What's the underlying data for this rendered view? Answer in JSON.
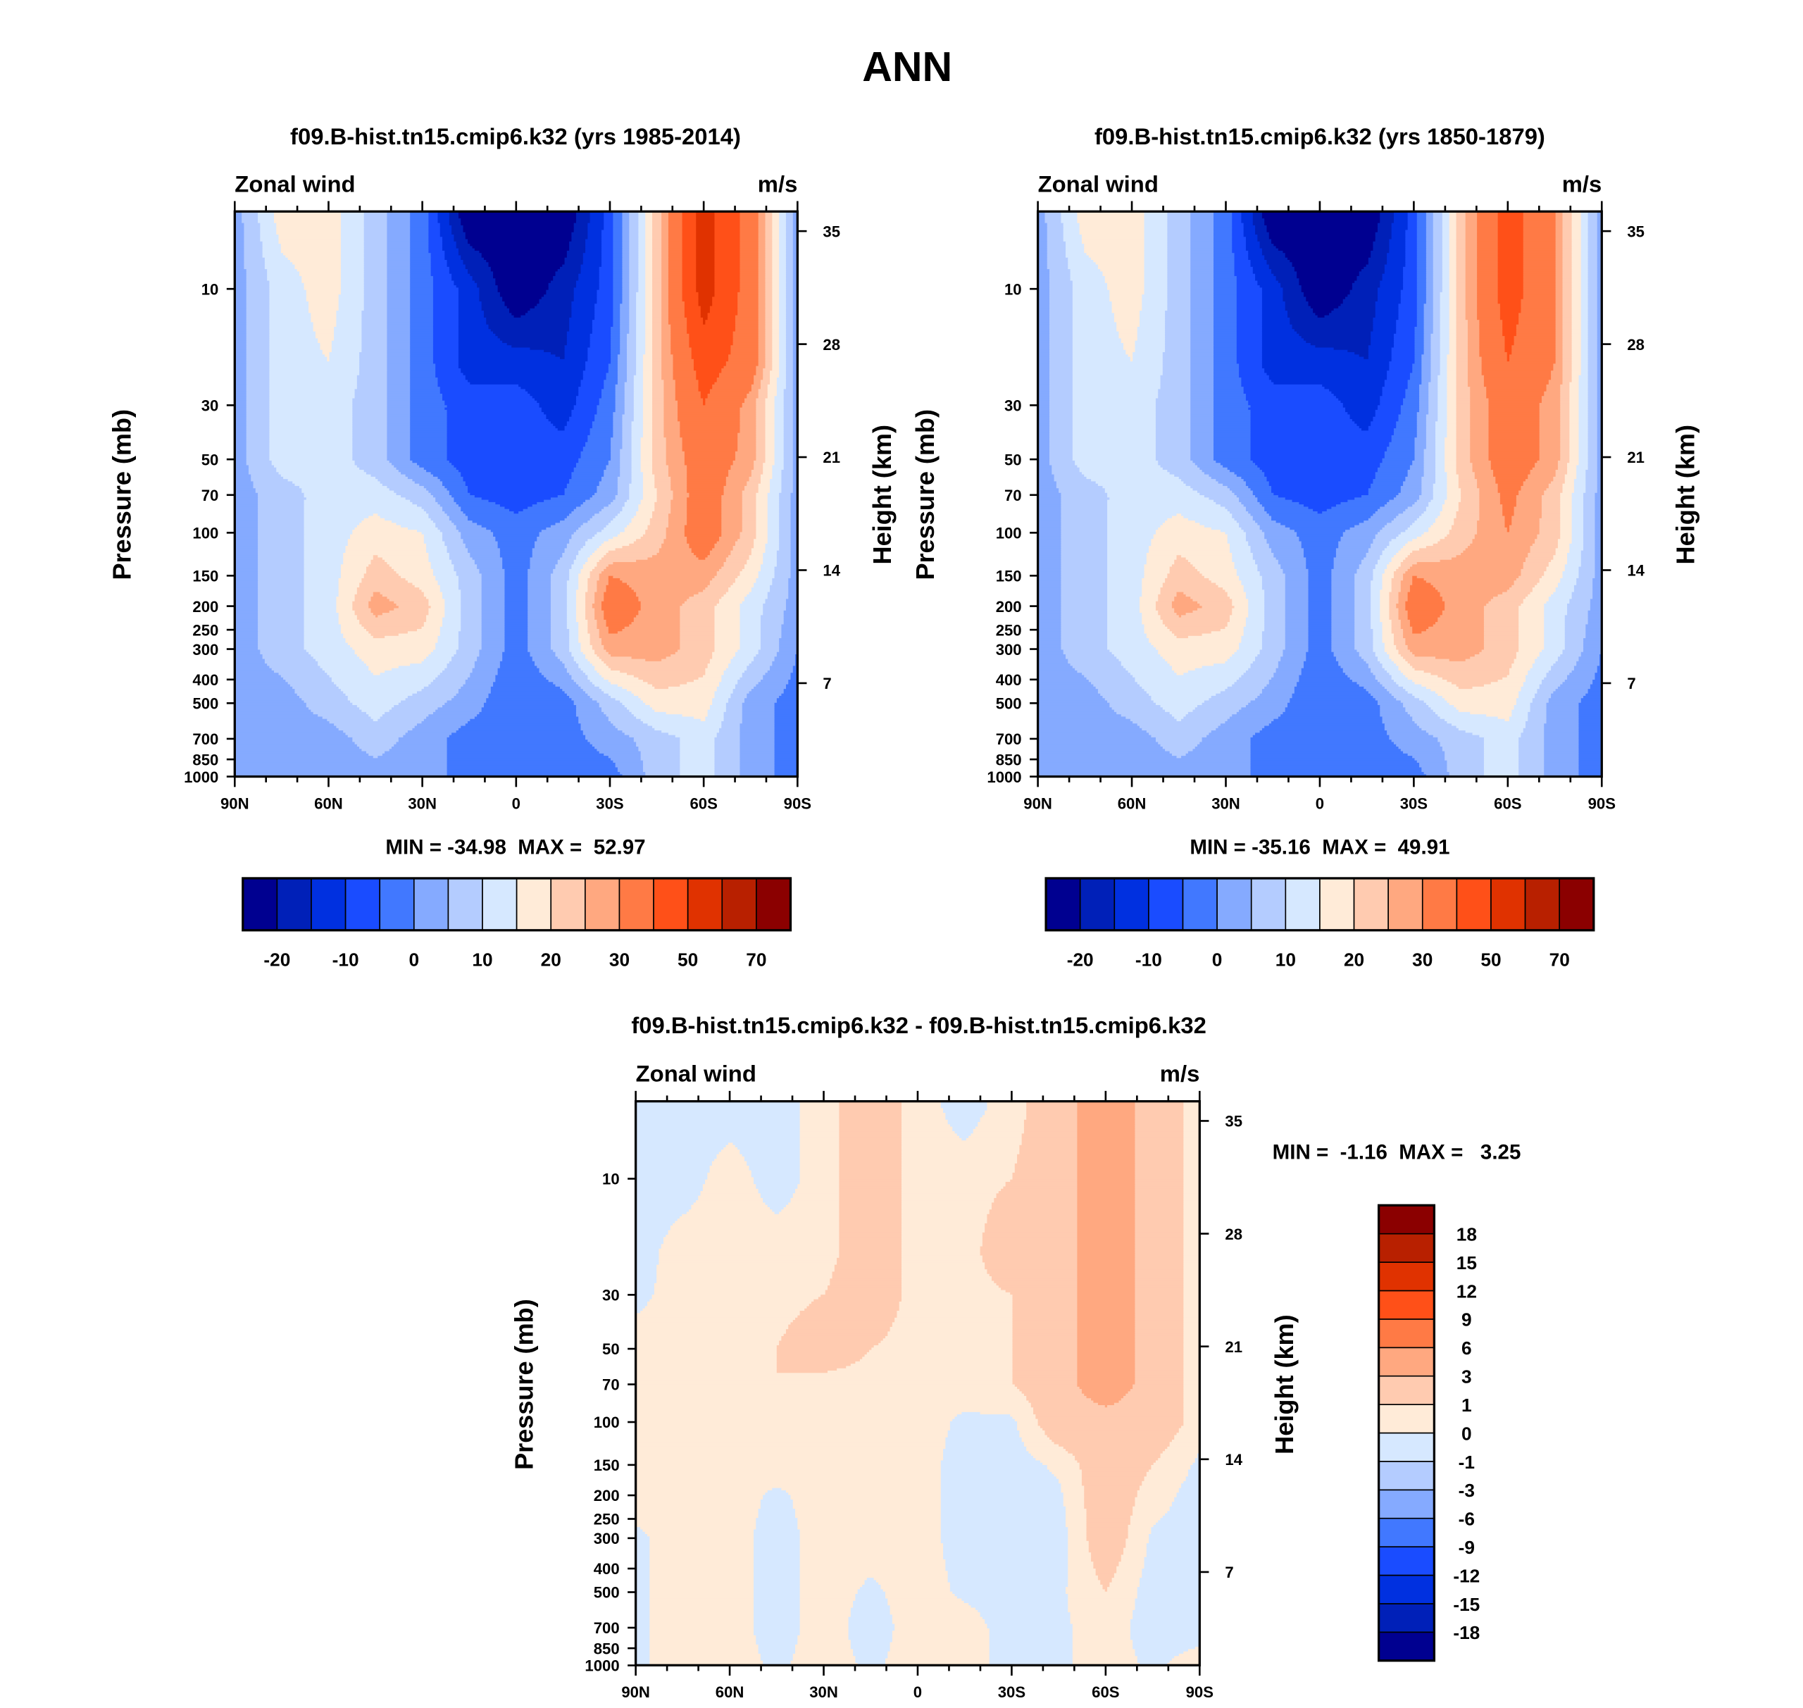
{
  "figure_title": "ANN",
  "colors": [
    "#000090",
    "#0020b8",
    "#0030e0",
    "#1a4cff",
    "#4178ff",
    "#85aaff",
    "#b4ccff",
    "#d6e8ff",
    "#ffebd8",
    "#ffcbb0",
    "#ffa880",
    "#ff7a45",
    "#ff5018",
    "#e03200",
    "#b82000",
    "#8b0000"
  ],
  "chart_data": [
    {
      "type": "heatmap",
      "title": "f09.B-hist.tn15.cmip6.k32 (yrs 1985-2014)",
      "left_label": "Zonal wind",
      "right_label": "m/s",
      "ylabel": "Pressure (mb)",
      "y2label": "Height (km)",
      "x_tick_values": [
        90,
        60,
        30,
        0,
        -30,
        -60,
        -90
      ],
      "x_tick_labels": [
        "90N",
        "60N",
        "30N",
        "0",
        "30S",
        "60S",
        "90S"
      ],
      "pressure_ticks": [
        10,
        30,
        50,
        70,
        100,
        150,
        200,
        250,
        300,
        400,
        500,
        700,
        850,
        1000
      ],
      "height_ticks": [
        35,
        28,
        21,
        14,
        7
      ],
      "min_max": "MIN = -34.98  MAX =  52.97",
      "levels": [
        -20,
        -15,
        -10,
        -5,
        0,
        5,
        10,
        15,
        20,
        25,
        30,
        40,
        50,
        60,
        70
      ],
      "colorbar_labels": [
        "-20",
        "-10",
        "0",
        "10",
        "20",
        "30",
        "50",
        "70"
      ],
      "colorbar_label_step": 2,
      "lat": [
        90,
        75,
        60,
        45,
        30,
        15,
        0,
        -15,
        -30,
        -45,
        -60,
        -75,
        -90
      ],
      "pressure": [
        5,
        10,
        20,
        30,
        50,
        70,
        100,
        150,
        200,
        300,
        500,
        700,
        1000
      ],
      "values": [
        [
          2.5,
          17.5,
          17.5,
          7.5,
          -2.5,
          -25,
          -25,
          -25,
          -7.5,
          22.5,
          55,
          35,
          2.5
        ],
        [
          2.5,
          12.5,
          17.5,
          7.5,
          -2.5,
          -12.5,
          -25,
          -17.5,
          -7.5,
          22.5,
          55,
          35,
          2.5
        ],
        [
          2.5,
          12.5,
          15,
          7.5,
          -2.5,
          -12.5,
          -12.5,
          -15,
          -5,
          22.5,
          45,
          35,
          2.5
        ],
        [
          2.5,
          12.5,
          12.5,
          7.5,
          -2.5,
          -7.5,
          -7.5,
          -12.5,
          -2.5,
          22.5,
          40,
          27.5,
          2.5
        ],
        [
          2.5,
          12.5,
          12.5,
          7.5,
          -2.5,
          -7.5,
          -7.5,
          -7.5,
          0,
          22.5,
          35,
          27.5,
          2.5
        ],
        [
          2.5,
          7.5,
          12.5,
          12.5,
          7.5,
          -5,
          -7.5,
          -5,
          2.5,
          20,
          35,
          22.5,
          2.5
        ],
        [
          2.5,
          7.5,
          12.5,
          17.5,
          15,
          2.5,
          -2.5,
          2.5,
          12.5,
          22.5,
          35,
          22.5,
          2.5
        ],
        [
          2.5,
          7.5,
          12.5,
          22.5,
          17.5,
          7.5,
          -2.5,
          7.5,
          30,
          27.5,
          27.5,
          17.5,
          2.5
        ],
        [
          2.5,
          7.5,
          12.5,
          27.5,
          22.5,
          7.5,
          -2.5,
          7.5,
          35,
          27.5,
          22.5,
          12.5,
          2.5
        ],
        [
          2.5,
          7.5,
          12.5,
          17.5,
          17.5,
          7.5,
          -2.5,
          7.5,
          27.5,
          27.5,
          22.5,
          12.5,
          0
        ],
        [
          2.5,
          2.5,
          7.5,
          12.5,
          7.5,
          2.5,
          -5,
          -2.5,
          7.5,
          17.5,
          17.5,
          2.5,
          -2.5
        ],
        [
          2.5,
          2.5,
          2.5,
          7.5,
          2.5,
          -2.5,
          -2.5,
          -2.5,
          2.5,
          7.5,
          12.5,
          2.5,
          -2.5
        ],
        [
          2.5,
          2.5,
          2.5,
          2.5,
          2.5,
          -2.5,
          -2.5,
          -2.5,
          -2.5,
          7.5,
          12.5,
          2.5,
          -2.5
        ]
      ]
    },
    {
      "type": "heatmap",
      "title": "f09.B-hist.tn15.cmip6.k32 (yrs 1850-1879)",
      "left_label": "Zonal wind",
      "right_label": "m/s",
      "ylabel": "Pressure (mb)",
      "y2label": "Height (km)",
      "x_tick_values": [
        90,
        60,
        30,
        0,
        -30,
        -60,
        -90
      ],
      "x_tick_labels": [
        "90N",
        "60N",
        "30N",
        "0",
        "30S",
        "60S",
        "90S"
      ],
      "pressure_ticks": [
        10,
        30,
        50,
        70,
        100,
        150,
        200,
        250,
        300,
        400,
        500,
        700,
        850,
        1000
      ],
      "height_ticks": [
        35,
        28,
        21,
        14,
        7
      ],
      "min_max": "MIN = -35.16  MAX =  49.91",
      "levels": [
        -20,
        -15,
        -10,
        -5,
        0,
        5,
        10,
        15,
        20,
        25,
        30,
        40,
        50,
        60,
        70
      ],
      "colorbar_labels": [
        "-20",
        "-10",
        "0",
        "10",
        "20",
        "30",
        "50",
        "70"
      ],
      "colorbar_label_step": 2,
      "lat": [
        90,
        75,
        60,
        45,
        30,
        15,
        0,
        -15,
        -30,
        -45,
        -60,
        -75,
        -90
      ],
      "pressure": [
        5,
        10,
        20,
        30,
        50,
        70,
        100,
        150,
        200,
        300,
        500,
        700,
        1000
      ],
      "values": [
        [
          2.5,
          17.5,
          17.5,
          7.5,
          -2.5,
          -25,
          -25,
          -25,
          -7.5,
          22.5,
          45,
          30,
          2.5
        ],
        [
          2.5,
          12.5,
          17.5,
          7.5,
          -2.5,
          -12.5,
          -25,
          -17.5,
          -7.5,
          22.5,
          45,
          30,
          2.5
        ],
        [
          2.5,
          12.5,
          15,
          7.5,
          -2.5,
          -12.5,
          -12.5,
          -15,
          -5,
          22.5,
          40,
          30,
          2.5
        ],
        [
          2.5,
          12.5,
          12.5,
          7.5,
          -2.5,
          -7.5,
          -7.5,
          -12.5,
          -2.5,
          22.5,
          35,
          27.5,
          2.5
        ],
        [
          2.5,
          12.5,
          12.5,
          7.5,
          -2.5,
          -7.5,
          -7.5,
          -7.5,
          0,
          22.5,
          35,
          27.5,
          2.5
        ],
        [
          2.5,
          7.5,
          12.5,
          12.5,
          7.5,
          -5,
          -7.5,
          -5,
          2.5,
          20,
          32,
          22.5,
          2.5
        ],
        [
          2.5,
          7.5,
          12.5,
          17.5,
          15,
          2.5,
          -2.5,
          2.5,
          12.5,
          22.5,
          30,
          22.5,
          2.5
        ],
        [
          2.5,
          7.5,
          12.5,
          22.5,
          17.5,
          7.5,
          -2.5,
          7.5,
          30,
          27.5,
          27.5,
          17.5,
          2.5
        ],
        [
          2.5,
          7.5,
          12.5,
          27.5,
          22.5,
          7.5,
          -2.5,
          7.5,
          35,
          27.5,
          22.5,
          12.5,
          2.5
        ],
        [
          2.5,
          7.5,
          12.5,
          17.5,
          17.5,
          7.5,
          -2.5,
          7.5,
          27.5,
          27.5,
          22.5,
          12.5,
          0
        ],
        [
          2.5,
          2.5,
          7.5,
          12.5,
          7.5,
          2.5,
          -5,
          -2.5,
          7.5,
          17.5,
          17.5,
          2.5,
          -2.5
        ],
        [
          2.5,
          2.5,
          2.5,
          7.5,
          2.5,
          -2.5,
          -2.5,
          -2.5,
          2.5,
          7.5,
          12.5,
          2.5,
          -2.5
        ],
        [
          2.5,
          2.5,
          2.5,
          2.5,
          2.5,
          -2.5,
          -2.5,
          -2.5,
          -2.5,
          7.5,
          12.5,
          2.5,
          -2.5
        ]
      ]
    },
    {
      "type": "heatmap",
      "title": "f09.B-hist.tn15.cmip6.k32 - f09.B-hist.tn15.cmip6.k32",
      "left_label": "Zonal wind",
      "right_label": "m/s",
      "ylabel": "Pressure (mb)",
      "y2label": "Height (km)",
      "x_tick_values": [
        90,
        60,
        30,
        0,
        -30,
        -60,
        -90
      ],
      "x_tick_labels": [
        "90N",
        "60N",
        "30N",
        "0",
        "30S",
        "60S",
        "90S"
      ],
      "pressure_ticks": [
        10,
        30,
        50,
        70,
        100,
        150,
        200,
        250,
        300,
        400,
        500,
        700,
        850,
        1000
      ],
      "height_ticks": [
        35,
        28,
        21,
        14,
        7
      ],
      "min_max": "MIN =  -1.16  MAX =   3.25",
      "levels": [
        -18,
        -15,
        -12,
        -9,
        -6,
        -3,
        -1,
        0,
        1,
        3,
        6,
        9,
        12,
        15,
        18
      ],
      "colorbar_labels": [
        "-18",
        "-15",
        "-12",
        "-9",
        "-6",
        "-3",
        "-1",
        "0",
        "1",
        "3",
        "6",
        "9",
        "12",
        "15",
        "18"
      ],
      "colorbar_label_step": 1,
      "lat": [
        90,
        75,
        60,
        45,
        30,
        15,
        0,
        -15,
        -30,
        -45,
        -60,
        -75,
        -90
      ],
      "pressure": [
        5,
        10,
        20,
        30,
        50,
        70,
        100,
        150,
        200,
        300,
        500,
        700,
        1000
      ],
      "values": [
        [
          -0.5,
          -0.5,
          -0.5,
          -0.5,
          0.5,
          2,
          0.5,
          -0.5,
          0.5,
          2,
          4.5,
          2,
          0.5
        ],
        [
          -0.5,
          -0.5,
          0.5,
          -0.5,
          0.5,
          2,
          0.5,
          0.5,
          1,
          2,
          4.5,
          2,
          0.5
        ],
        [
          -0.5,
          0.5,
          0.5,
          0.5,
          0.5,
          2,
          0.5,
          0.5,
          2,
          2,
          4.5,
          2,
          0.5
        ],
        [
          -0.3,
          0.5,
          0.5,
          0.5,
          1,
          2,
          0.5,
          0.5,
          1,
          2,
          4.5,
          2,
          0.5
        ],
        [
          0.5,
          0.5,
          0.5,
          1,
          2,
          1,
          0.5,
          0.5,
          1,
          2,
          4.5,
          2,
          0.5
        ],
        [
          0.5,
          0.5,
          0.5,
          1,
          0.5,
          0.5,
          0.5,
          0.5,
          1,
          2,
          4.5,
          2,
          0.5
        ],
        [
          0.5,
          0.5,
          0.5,
          0.5,
          0.5,
          0.5,
          0.5,
          -0.2,
          -0.2,
          2,
          2,
          2,
          0.5
        ],
        [
          0.5,
          0.5,
          0.5,
          0.5,
          0.5,
          0.5,
          0.5,
          -0.5,
          -0.5,
          0.2,
          2,
          1,
          -0.2
        ],
        [
          0.5,
          0.5,
          0.5,
          -0.2,
          0.5,
          0.5,
          0.5,
          -0.5,
          -0.5,
          -0.2,
          2,
          0.5,
          -0.5
        ],
        [
          -0.2,
          0.5,
          0.5,
          -0.5,
          0.5,
          0.5,
          0.5,
          -0.5,
          -0.5,
          -0.5,
          2,
          -0.2,
          -0.5
        ],
        [
          -0.2,
          0.5,
          0.5,
          -0.5,
          0.5,
          -0.2,
          0.5,
          -0.2,
          -0.5,
          -0.2,
          1,
          -0.5,
          -0.5
        ],
        [
          -0.2,
          0.5,
          0.5,
          -0.5,
          0.5,
          -0.5,
          0.5,
          0.5,
          -0.5,
          -0.2,
          0.5,
          -0.5,
          -0.5
        ],
        [
          -0.2,
          0.5,
          0.5,
          -0.2,
          0.5,
          -0.2,
          0.5,
          0.5,
          -0.5,
          -0.2,
          0.5,
          -0.2,
          0.5
        ]
      ]
    }
  ]
}
